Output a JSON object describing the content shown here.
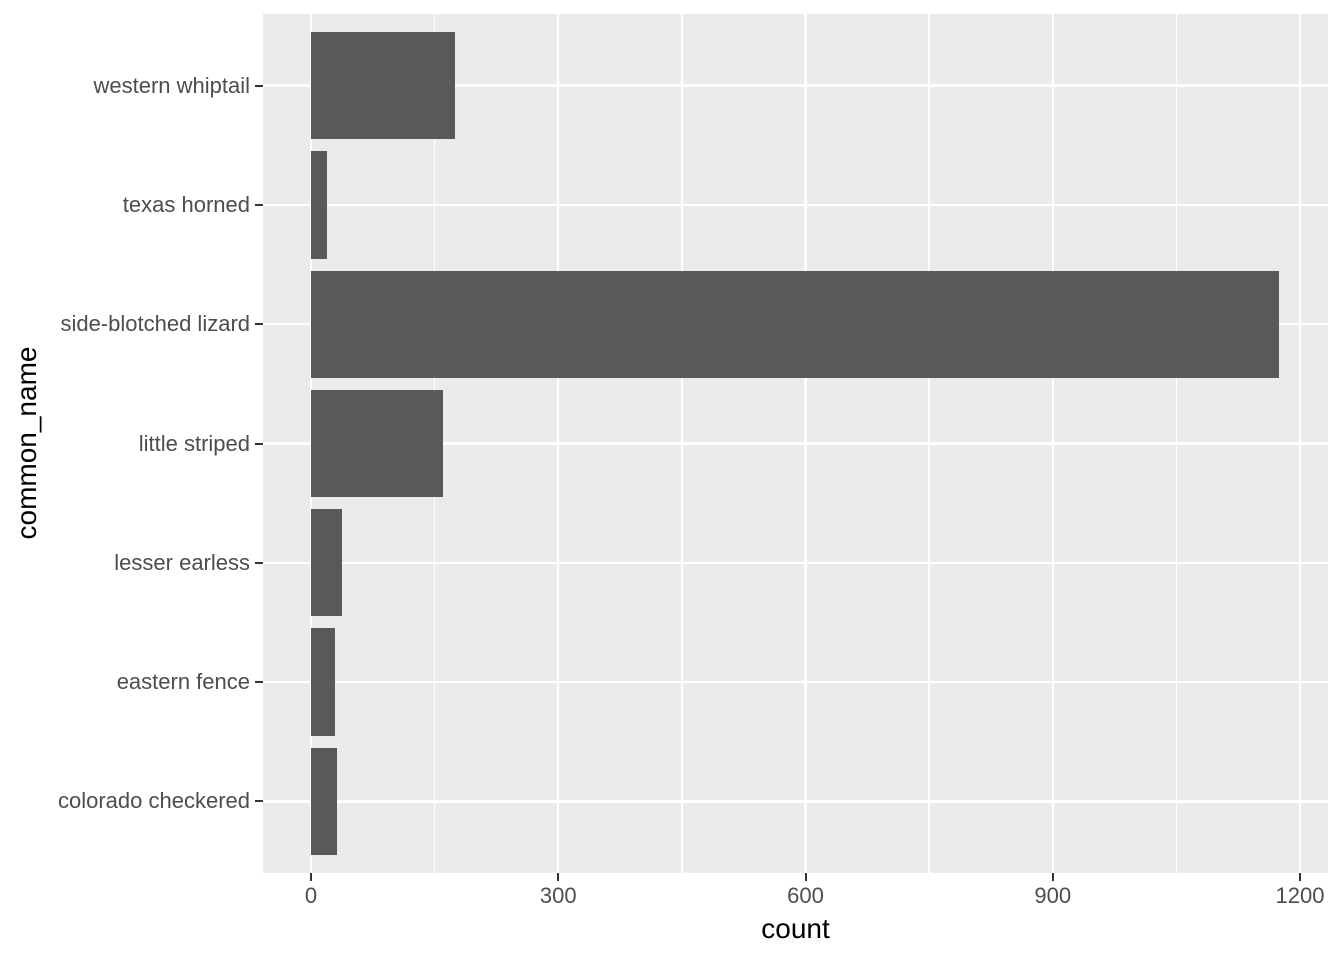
{
  "chart_data": {
    "type": "bar",
    "orientation": "horizontal",
    "title": "",
    "xlabel": "count",
    "ylabel": "common_name",
    "categories": [
      "western whiptail",
      "texas horned",
      "side-blotched lizard",
      "little striped",
      "lesser earless",
      "eastern fence",
      "colorado checkered"
    ],
    "values": [
      175,
      19,
      1175,
      160,
      38,
      29,
      31
    ],
    "xlim": [
      0,
      1200
    ],
    "x_major_ticks": [
      0,
      300,
      600,
      900,
      1200
    ],
    "x_tick_labels": [
      "0",
      "300",
      "600",
      "900",
      "1200"
    ],
    "x_minor_gridlines": [
      150,
      450,
      750,
      1050
    ],
    "grid": true,
    "legend": false,
    "bar_width_fraction": 0.9,
    "colors": {
      "bar": "#595959",
      "panel_background": "#EBEBEB",
      "gridline": "#FFFFFF",
      "axis_text": "#4D4D4D",
      "axis_title": "#000000",
      "tick_mark": "#333333",
      "figure_background": "#FFFFFF"
    }
  }
}
